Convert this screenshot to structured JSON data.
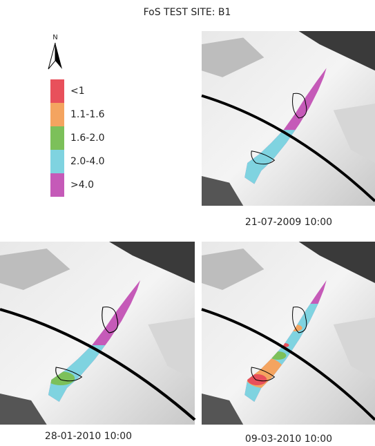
{
  "title": "FoS TEST SITE: B1",
  "north_label": "N",
  "legend": [
    {
      "label": "<1",
      "color": "#e8505b"
    },
    {
      "label": "1.1-1.6",
      "color": "#f4a460"
    },
    {
      "label": "1.6-2.0",
      "color": "#7cc05a"
    },
    {
      "label": "2.0-4.0",
      "color": "#7fd3e0"
    },
    {
      "label": ">4.0",
      "color": "#c55ab8"
    }
  ],
  "panels": [
    {
      "caption": "21-07-2009 10:00"
    },
    {
      "caption": "28-01-2010 10:00"
    },
    {
      "caption": "09-03-2010 10:00"
    }
  ]
}
